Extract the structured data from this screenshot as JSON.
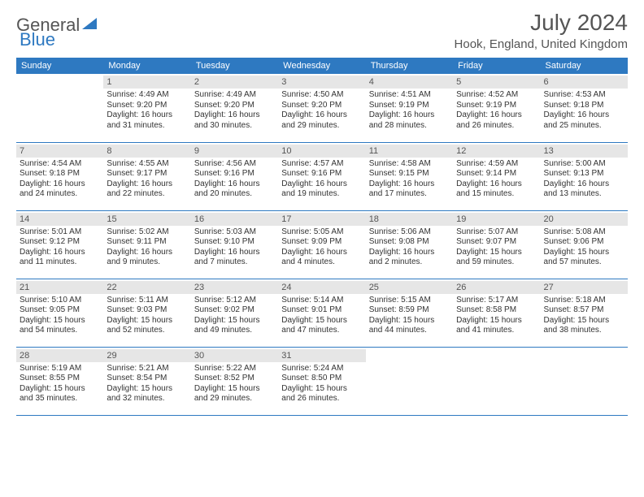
{
  "brand": {
    "part1": "General",
    "part2": "Blue"
  },
  "title": "July 2024",
  "location": "Hook, England, United Kingdom",
  "colors": {
    "header_bg": "#2e79c1",
    "header_text": "#ffffff",
    "daynum_bg": "#e6e6e6",
    "border": "#2e79c1",
    "text": "#333333"
  },
  "weekdays": [
    "Sunday",
    "Monday",
    "Tuesday",
    "Wednesday",
    "Thursday",
    "Friday",
    "Saturday"
  ],
  "weeks": [
    [
      null,
      {
        "n": "1",
        "sr": "Sunrise: 4:49 AM",
        "ss": "Sunset: 9:20 PM",
        "d1": "Daylight: 16 hours",
        "d2": "and 31 minutes."
      },
      {
        "n": "2",
        "sr": "Sunrise: 4:49 AM",
        "ss": "Sunset: 9:20 PM",
        "d1": "Daylight: 16 hours",
        "d2": "and 30 minutes."
      },
      {
        "n": "3",
        "sr": "Sunrise: 4:50 AM",
        "ss": "Sunset: 9:20 PM",
        "d1": "Daylight: 16 hours",
        "d2": "and 29 minutes."
      },
      {
        "n": "4",
        "sr": "Sunrise: 4:51 AM",
        "ss": "Sunset: 9:19 PM",
        "d1": "Daylight: 16 hours",
        "d2": "and 28 minutes."
      },
      {
        "n": "5",
        "sr": "Sunrise: 4:52 AM",
        "ss": "Sunset: 9:19 PM",
        "d1": "Daylight: 16 hours",
        "d2": "and 26 minutes."
      },
      {
        "n": "6",
        "sr": "Sunrise: 4:53 AM",
        "ss": "Sunset: 9:18 PM",
        "d1": "Daylight: 16 hours",
        "d2": "and 25 minutes."
      }
    ],
    [
      {
        "n": "7",
        "sr": "Sunrise: 4:54 AM",
        "ss": "Sunset: 9:18 PM",
        "d1": "Daylight: 16 hours",
        "d2": "and 24 minutes."
      },
      {
        "n": "8",
        "sr": "Sunrise: 4:55 AM",
        "ss": "Sunset: 9:17 PM",
        "d1": "Daylight: 16 hours",
        "d2": "and 22 minutes."
      },
      {
        "n": "9",
        "sr": "Sunrise: 4:56 AM",
        "ss": "Sunset: 9:16 PM",
        "d1": "Daylight: 16 hours",
        "d2": "and 20 minutes."
      },
      {
        "n": "10",
        "sr": "Sunrise: 4:57 AM",
        "ss": "Sunset: 9:16 PM",
        "d1": "Daylight: 16 hours",
        "d2": "and 19 minutes."
      },
      {
        "n": "11",
        "sr": "Sunrise: 4:58 AM",
        "ss": "Sunset: 9:15 PM",
        "d1": "Daylight: 16 hours",
        "d2": "and 17 minutes."
      },
      {
        "n": "12",
        "sr": "Sunrise: 4:59 AM",
        "ss": "Sunset: 9:14 PM",
        "d1": "Daylight: 16 hours",
        "d2": "and 15 minutes."
      },
      {
        "n": "13",
        "sr": "Sunrise: 5:00 AM",
        "ss": "Sunset: 9:13 PM",
        "d1": "Daylight: 16 hours",
        "d2": "and 13 minutes."
      }
    ],
    [
      {
        "n": "14",
        "sr": "Sunrise: 5:01 AM",
        "ss": "Sunset: 9:12 PM",
        "d1": "Daylight: 16 hours",
        "d2": "and 11 minutes."
      },
      {
        "n": "15",
        "sr": "Sunrise: 5:02 AM",
        "ss": "Sunset: 9:11 PM",
        "d1": "Daylight: 16 hours",
        "d2": "and 9 minutes."
      },
      {
        "n": "16",
        "sr": "Sunrise: 5:03 AM",
        "ss": "Sunset: 9:10 PM",
        "d1": "Daylight: 16 hours",
        "d2": "and 7 minutes."
      },
      {
        "n": "17",
        "sr": "Sunrise: 5:05 AM",
        "ss": "Sunset: 9:09 PM",
        "d1": "Daylight: 16 hours",
        "d2": "and 4 minutes."
      },
      {
        "n": "18",
        "sr": "Sunrise: 5:06 AM",
        "ss": "Sunset: 9:08 PM",
        "d1": "Daylight: 16 hours",
        "d2": "and 2 minutes."
      },
      {
        "n": "19",
        "sr": "Sunrise: 5:07 AM",
        "ss": "Sunset: 9:07 PM",
        "d1": "Daylight: 15 hours",
        "d2": "and 59 minutes."
      },
      {
        "n": "20",
        "sr": "Sunrise: 5:08 AM",
        "ss": "Sunset: 9:06 PM",
        "d1": "Daylight: 15 hours",
        "d2": "and 57 minutes."
      }
    ],
    [
      {
        "n": "21",
        "sr": "Sunrise: 5:10 AM",
        "ss": "Sunset: 9:05 PM",
        "d1": "Daylight: 15 hours",
        "d2": "and 54 minutes."
      },
      {
        "n": "22",
        "sr": "Sunrise: 5:11 AM",
        "ss": "Sunset: 9:03 PM",
        "d1": "Daylight: 15 hours",
        "d2": "and 52 minutes."
      },
      {
        "n": "23",
        "sr": "Sunrise: 5:12 AM",
        "ss": "Sunset: 9:02 PM",
        "d1": "Daylight: 15 hours",
        "d2": "and 49 minutes."
      },
      {
        "n": "24",
        "sr": "Sunrise: 5:14 AM",
        "ss": "Sunset: 9:01 PM",
        "d1": "Daylight: 15 hours",
        "d2": "and 47 minutes."
      },
      {
        "n": "25",
        "sr": "Sunrise: 5:15 AM",
        "ss": "Sunset: 8:59 PM",
        "d1": "Daylight: 15 hours",
        "d2": "and 44 minutes."
      },
      {
        "n": "26",
        "sr": "Sunrise: 5:17 AM",
        "ss": "Sunset: 8:58 PM",
        "d1": "Daylight: 15 hours",
        "d2": "and 41 minutes."
      },
      {
        "n": "27",
        "sr": "Sunrise: 5:18 AM",
        "ss": "Sunset: 8:57 PM",
        "d1": "Daylight: 15 hours",
        "d2": "and 38 minutes."
      }
    ],
    [
      {
        "n": "28",
        "sr": "Sunrise: 5:19 AM",
        "ss": "Sunset: 8:55 PM",
        "d1": "Daylight: 15 hours",
        "d2": "and 35 minutes."
      },
      {
        "n": "29",
        "sr": "Sunrise: 5:21 AM",
        "ss": "Sunset: 8:54 PM",
        "d1": "Daylight: 15 hours",
        "d2": "and 32 minutes."
      },
      {
        "n": "30",
        "sr": "Sunrise: 5:22 AM",
        "ss": "Sunset: 8:52 PM",
        "d1": "Daylight: 15 hours",
        "d2": "and 29 minutes."
      },
      {
        "n": "31",
        "sr": "Sunrise: 5:24 AM",
        "ss": "Sunset: 8:50 PM",
        "d1": "Daylight: 15 hours",
        "d2": "and 26 minutes."
      },
      null,
      null,
      null
    ]
  ]
}
